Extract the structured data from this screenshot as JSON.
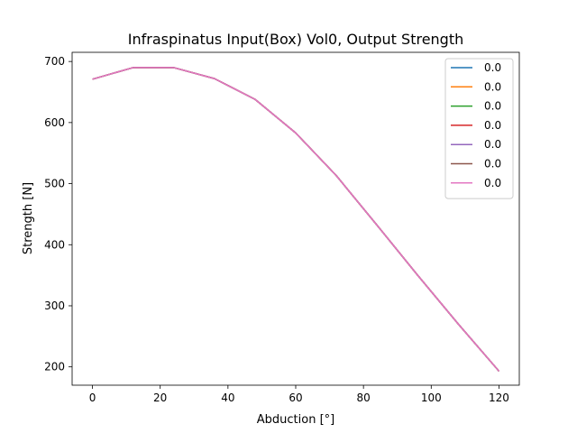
{
  "chart_data": {
    "type": "line",
    "title": "Infraspinatus Input(Box) Vol0, Output Strength",
    "xlabel": "Abduction [°]",
    "ylabel": "Strength [N]",
    "xlim": [
      -6,
      126
    ],
    "ylim": [
      170,
      715
    ],
    "x_ticks": [
      0,
      20,
      40,
      60,
      80,
      100,
      120
    ],
    "y_ticks": [
      200,
      300,
      400,
      500,
      600,
      700
    ],
    "grid": false,
    "legend_position": "top-right",
    "x": [
      0,
      12,
      24,
      36,
      48,
      60,
      72,
      84,
      96,
      108,
      120
    ],
    "series": [
      {
        "name": "0.0",
        "color": "#1f77b4",
        "values": [
          671,
          690,
          690,
          672,
          638,
          583,
          513,
          432,
          350,
          270,
          193
        ]
      },
      {
        "name": "0.0",
        "color": "#ff7f0e",
        "values": [
          671,
          690,
          690,
          672,
          638,
          583,
          513,
          432,
          350,
          270,
          193
        ]
      },
      {
        "name": "0.0",
        "color": "#2ca02c",
        "values": [
          671,
          690,
          690,
          672,
          638,
          583,
          513,
          432,
          350,
          270,
          193
        ]
      },
      {
        "name": "0.0",
        "color": "#d62728",
        "values": [
          671,
          690,
          690,
          672,
          638,
          583,
          513,
          432,
          350,
          270,
          193
        ]
      },
      {
        "name": "0.0",
        "color": "#9467bd",
        "values": [
          671,
          690,
          690,
          672,
          638,
          583,
          513,
          432,
          350,
          270,
          193
        ]
      },
      {
        "name": "0.0",
        "color": "#8c564b",
        "values": [
          671,
          690,
          690,
          672,
          638,
          583,
          513,
          432,
          350,
          270,
          193
        ]
      },
      {
        "name": "0.0",
        "color": "#e377c2",
        "values": [
          671,
          690,
          690,
          672,
          638,
          583,
          513,
          432,
          350,
          270,
          193
        ]
      }
    ]
  }
}
